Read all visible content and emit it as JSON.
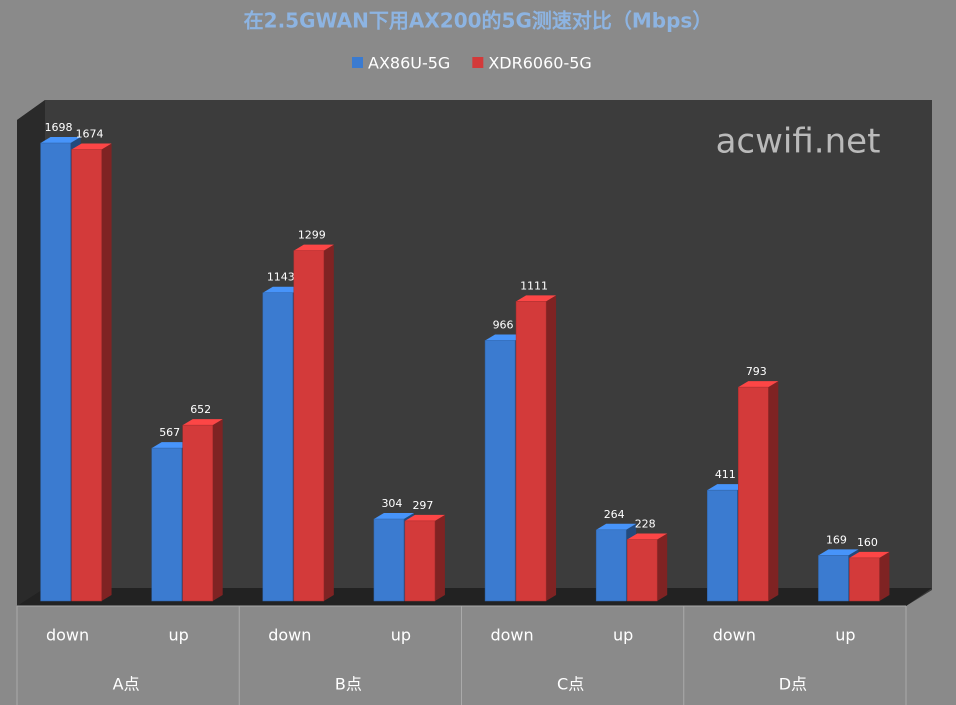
{
  "chart_data": {
    "type": "bar",
    "title": "在2.5GWAN下用AX200的5G测速对比（Mbps）",
    "watermark": "acwifi.net",
    "categories": [
      "down",
      "up",
      "down",
      "up",
      "down",
      "up",
      "down",
      "up"
    ],
    "groups": [
      "A点",
      "B点",
      "C点",
      "D点"
    ],
    "series": [
      {
        "name": "AX86U-5G",
        "color": "#3b7bd0",
        "values": [
          1698,
          567,
          1143,
          304,
          966,
          264,
          411,
          169
        ]
      },
      {
        "name": "XDR6060-5G",
        "color": "#d33a3a",
        "values": [
          1674,
          652,
          1299,
          297,
          1111,
          228,
          793,
          160
        ]
      }
    ]
  }
}
